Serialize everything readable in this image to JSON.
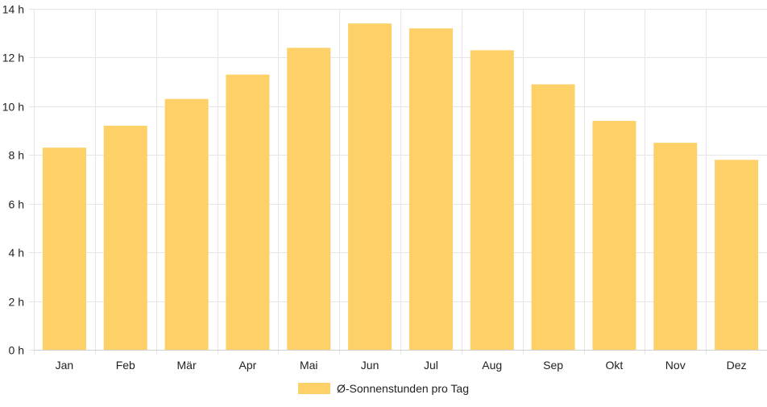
{
  "chart_data": {
    "type": "bar",
    "categories": [
      "Jan",
      "Feb",
      "Mär",
      "Apr",
      "Mai",
      "Jun",
      "Jul",
      "Aug",
      "Sep",
      "Okt",
      "Nov",
      "Dez"
    ],
    "series": [
      {
        "name": "Ø-Sonnenstunden pro Tag",
        "values": [
          8.3,
          9.2,
          10.3,
          11.3,
          12.4,
          13.4,
          13.2,
          12.3,
          10.9,
          9.4,
          8.5,
          7.8
        ],
        "color": "#fdd068"
      }
    ],
    "y_ticks": [
      "0 h",
      "2 h",
      "4 h",
      "6 h",
      "8 h",
      "10 h",
      "12 h",
      "14 h"
    ],
    "ylim": [
      0,
      14
    ],
    "y_tick_step": 2,
    "grid": true,
    "legend_position": "bottom"
  },
  "colors": {
    "bar": "#fdd068",
    "grid": "#e6e6e6",
    "text": "#222222"
  }
}
